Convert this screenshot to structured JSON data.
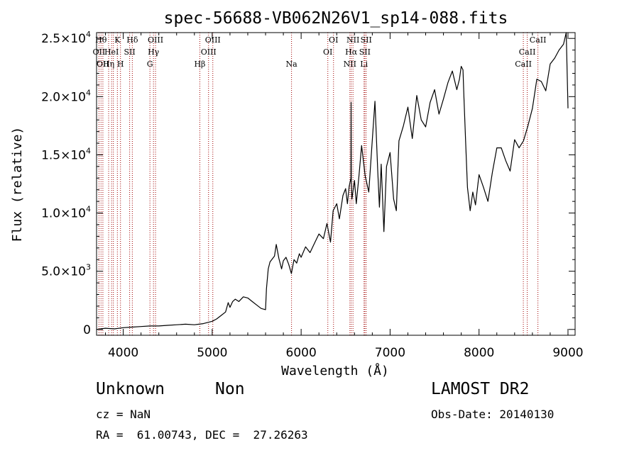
{
  "chart_data": {
    "type": "line",
    "title": "spec-56688-VB062N26V1_sp14-088.fits",
    "xlabel": "Wavelength (Å)",
    "ylabel": "Flux (relative)",
    "xlim": [
      3700,
      9080
    ],
    "ylim": [
      -500,
      25500
    ],
    "x_ticks": [
      4000,
      5000,
      6000,
      7000,
      8000,
      9000
    ],
    "x_tick_labels": [
      "4000",
      "5000",
      "6000",
      "7000",
      "8000",
      "9000"
    ],
    "y_ticks": [
      0,
      5000,
      10000,
      15000,
      20000,
      25000
    ],
    "y_tick_labels": [
      {
        "mant": "0",
        "exp": ""
      },
      {
        "mant": "5.0×10",
        "exp": "3"
      },
      {
        "mant": "1.0×10",
        "exp": "4"
      },
      {
        "mant": "1.5×10",
        "exp": "4"
      },
      {
        "mant": "2.0×10",
        "exp": "4"
      },
      {
        "mant": "2.5×10",
        "exp": "4"
      }
    ],
    "grid": false,
    "series": [
      {
        "line_color": "#000000",
        "x": [
          3700,
          3800,
          3900,
          4000,
          4100,
          4200,
          4300,
          4400,
          4500,
          4600,
          4700,
          4800,
          4850,
          4900,
          4950,
          5000,
          5050,
          5100,
          5150,
          5180,
          5200,
          5230,
          5260,
          5300,
          5350,
          5400,
          5450,
          5500,
          5550,
          5600,
          5610,
          5630,
          5650,
          5700,
          5720,
          5750,
          5780,
          5800,
          5830,
          5860,
          5890,
          5920,
          5950,
          5980,
          6000,
          6050,
          6100,
          6150,
          6200,
          6250,
          6290,
          6330,
          6360,
          6400,
          6430,
          6470,
          6500,
          6520,
          6540,
          6560,
          6562,
          6564,
          6570,
          6600,
          6620,
          6650,
          6680,
          6700,
          6720,
          6760,
          6800,
          6830,
          6860,
          6880,
          6900,
          6930,
          6960,
          7000,
          7040,
          7070,
          7100,
          7150,
          7200,
          7250,
          7300,
          7350,
          7400,
          7450,
          7500,
          7550,
          7600,
          7650,
          7700,
          7750,
          7780,
          7800,
          7820,
          7830,
          7850,
          7870,
          7900,
          7930,
          7960,
          8000,
          8050,
          8100,
          8150,
          8200,
          8250,
          8300,
          8350,
          8400,
          8450,
          8500,
          8550,
          8600,
          8650,
          8700,
          8750,
          8800,
          8850,
          8900,
          8950,
          8980,
          9000
        ],
        "y": [
          0,
          100,
          50,
          150,
          200,
          250,
          300,
          300,
          350,
          400,
          450,
          400,
          450,
          500,
          600,
          700,
          900,
          1200,
          1500,
          2300,
          1900,
          2400,
          2600,
          2400,
          2800,
          2700,
          2400,
          2100,
          1800,
          1700,
          3500,
          5200,
          5800,
          6300,
          7300,
          6100,
          5200,
          5900,
          6200,
          5600,
          4800,
          6000,
          5700,
          6500,
          6200,
          7100,
          6600,
          7400,
          8200,
          7800,
          9100,
          7500,
          10200,
          10800,
          9500,
          11500,
          12100,
          10800,
          12300,
          13000,
          19500,
          12800,
          11200,
          12800,
          10800,
          13200,
          15800,
          14500,
          13200,
          11800,
          16300,
          19600,
          13800,
          10500,
          14200,
          8400,
          14000,
          15200,
          11200,
          10200,
          16200,
          17500,
          19100,
          16400,
          20100,
          18000,
          17400,
          19500,
          20600,
          18500,
          19800,
          21200,
          22200,
          20600,
          21500,
          22600,
          22300,
          20000,
          16000,
          12200,
          10200,
          11800,
          10700,
          13300,
          12200,
          11000,
          13500,
          15600,
          15600,
          14500,
          13600,
          16300,
          15600,
          16200,
          17500,
          19000,
          21500,
          21300,
          20500,
          22800,
          23300,
          24000,
          24500,
          25500,
          19000
        ]
      }
    ],
    "lines": [
      {
        "x": 3727,
        "row": 1,
        "tex": "OII"
      },
      {
        "x": 3750,
        "row": 0,
        "tex": "Hθ"
      },
      {
        "x": 3771,
        "row": 2,
        "tex": "OII"
      },
      {
        "x": 3836,
        "row": 2,
        "tex": "Hη"
      },
      {
        "x": 3869,
        "row": 1,
        "tex": "HeI"
      },
      {
        "x": 3889,
        "row": 0,
        "tex": ""
      },
      {
        "x": 3934,
        "row": 0,
        "tex": "K"
      },
      {
        "x": 3969,
        "row": 2,
        "tex": "H"
      },
      {
        "x": 4072,
        "row": 1,
        "tex": "SII"
      },
      {
        "x": 4102,
        "row": 0,
        "tex": "Hδ"
      },
      {
        "x": 4300,
        "row": 2,
        "tex": "G"
      },
      {
        "x": 4340,
        "row": 1,
        "tex": "Hγ"
      },
      {
        "x": 4363,
        "row": 0,
        "tex": "OIII"
      },
      {
        "x": 4861,
        "row": 2,
        "tex": "Hβ"
      },
      {
        "x": 4959,
        "row": 1,
        "tex": "OIII"
      },
      {
        "x": 5007,
        "row": 0,
        "tex": "OIII"
      },
      {
        "x": 5892,
        "row": 2,
        "tex": "Na"
      },
      {
        "x": 6300,
        "row": 1,
        "tex": "OI"
      },
      {
        "x": 6364,
        "row": 0,
        "tex": "OI"
      },
      {
        "x": 6548,
        "row": 2,
        "tex": "NII"
      },
      {
        "x": 6563,
        "row": 1,
        "tex": "Hα"
      },
      {
        "x": 6583,
        "row": 0,
        "tex": "NII"
      },
      {
        "x": 6707,
        "row": 2,
        "tex": "Li"
      },
      {
        "x": 6716,
        "row": 1,
        "tex": "SII"
      },
      {
        "x": 6731,
        "row": 0,
        "tex": "SII"
      },
      {
        "x": 8498,
        "row": 2,
        "tex": "CaII"
      },
      {
        "x": 8542,
        "row": 1,
        "tex": "CaII"
      },
      {
        "x": 8662,
        "row": 0,
        "tex": "CaII"
      }
    ]
  },
  "info": {
    "object_class": "Unknown",
    "object_subclass": "Non",
    "survey": "LAMOST DR2",
    "redshift": "cz = NaN",
    "obs_date": "Obs-Date: 20140130",
    "coords": "RA =  61.00743, DEC =  27.26263"
  }
}
